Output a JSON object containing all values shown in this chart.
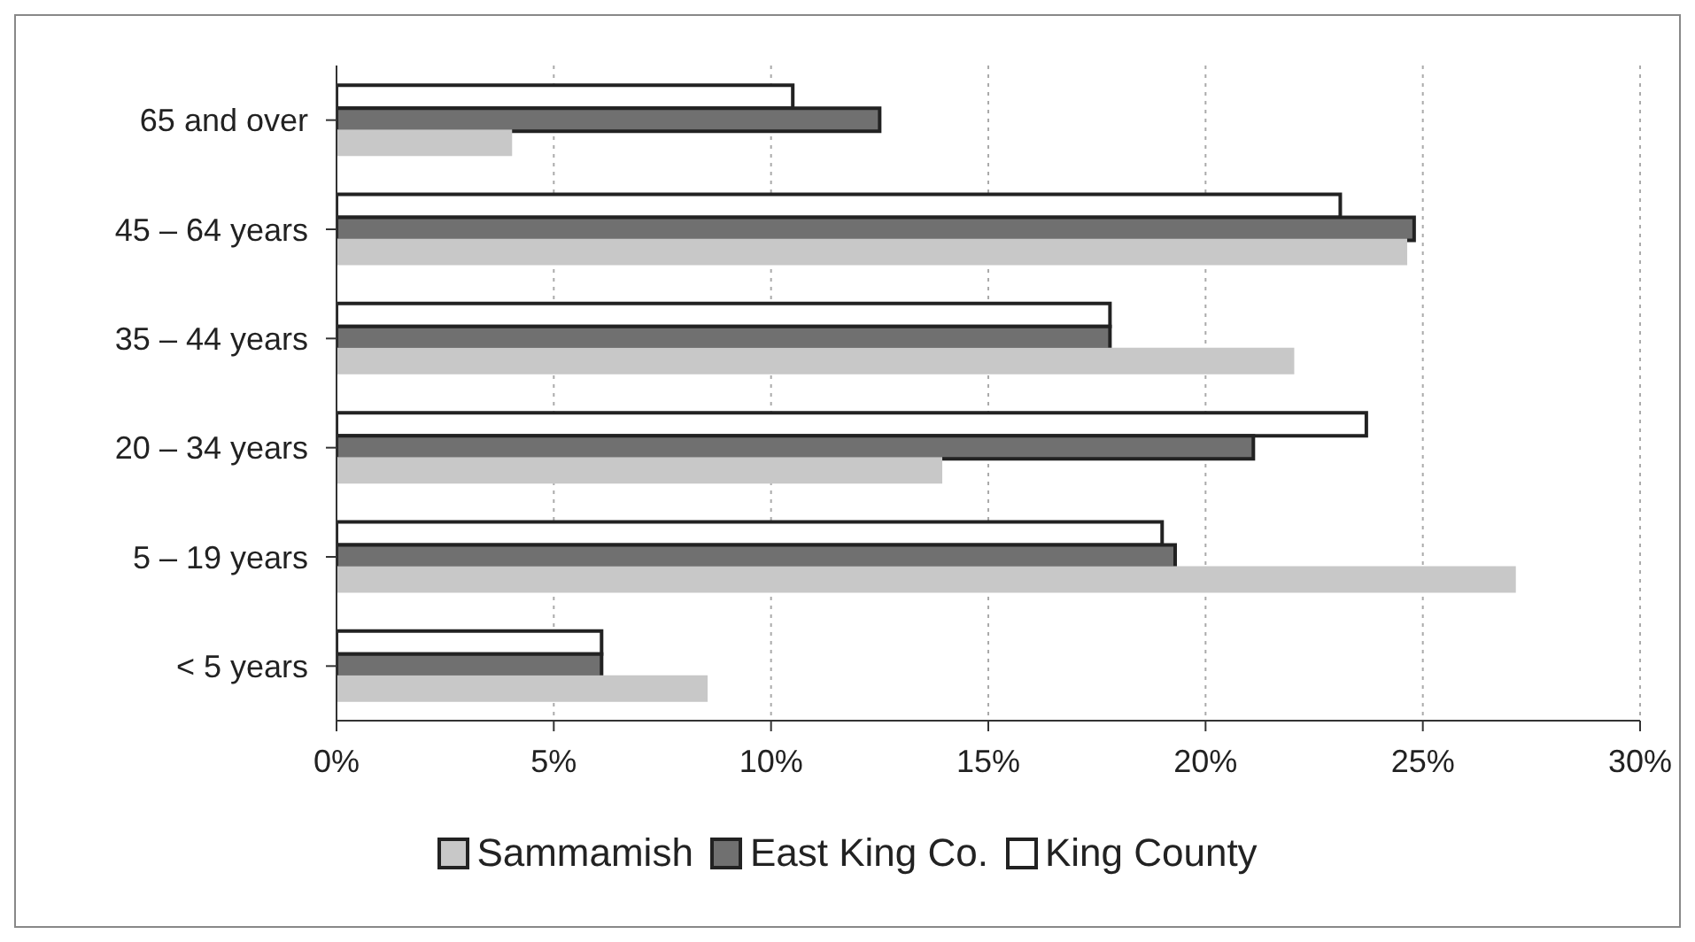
{
  "chart_data": {
    "type": "bar",
    "orientation": "horizontal",
    "categories": [
      "65 and over",
      "45 – 64 years",
      "35 – 44 years",
      "20 – 34 years",
      "5 – 19 years",
      "< 5 years"
    ],
    "series": [
      {
        "name": "Sammamish",
        "color": "#c8c8c8",
        "values": [
          4.0,
          24.6,
          22.0,
          13.9,
          27.1,
          8.5
        ]
      },
      {
        "name": "East King Co.",
        "color": "#707070",
        "values": [
          12.5,
          24.8,
          17.8,
          21.1,
          19.3,
          6.1
        ]
      },
      {
        "name": "King County",
        "color": "#ffffff",
        "values": [
          10.5,
          23.1,
          17.8,
          23.7,
          19.0,
          6.1
        ]
      }
    ],
    "xlim": [
      0,
      30
    ],
    "xticks": [
      {
        "value": 0,
        "label": "0%"
      },
      {
        "value": 5,
        "label": "5%"
      },
      {
        "value": 10,
        "label": "10%"
      },
      {
        "value": 15,
        "label": "15%"
      },
      {
        "value": 20,
        "label": "20%"
      },
      {
        "value": 25,
        "label": "25%"
      },
      {
        "value": 30,
        "label": "30%"
      }
    ],
    "grid": "x",
    "legend": "bottom"
  }
}
